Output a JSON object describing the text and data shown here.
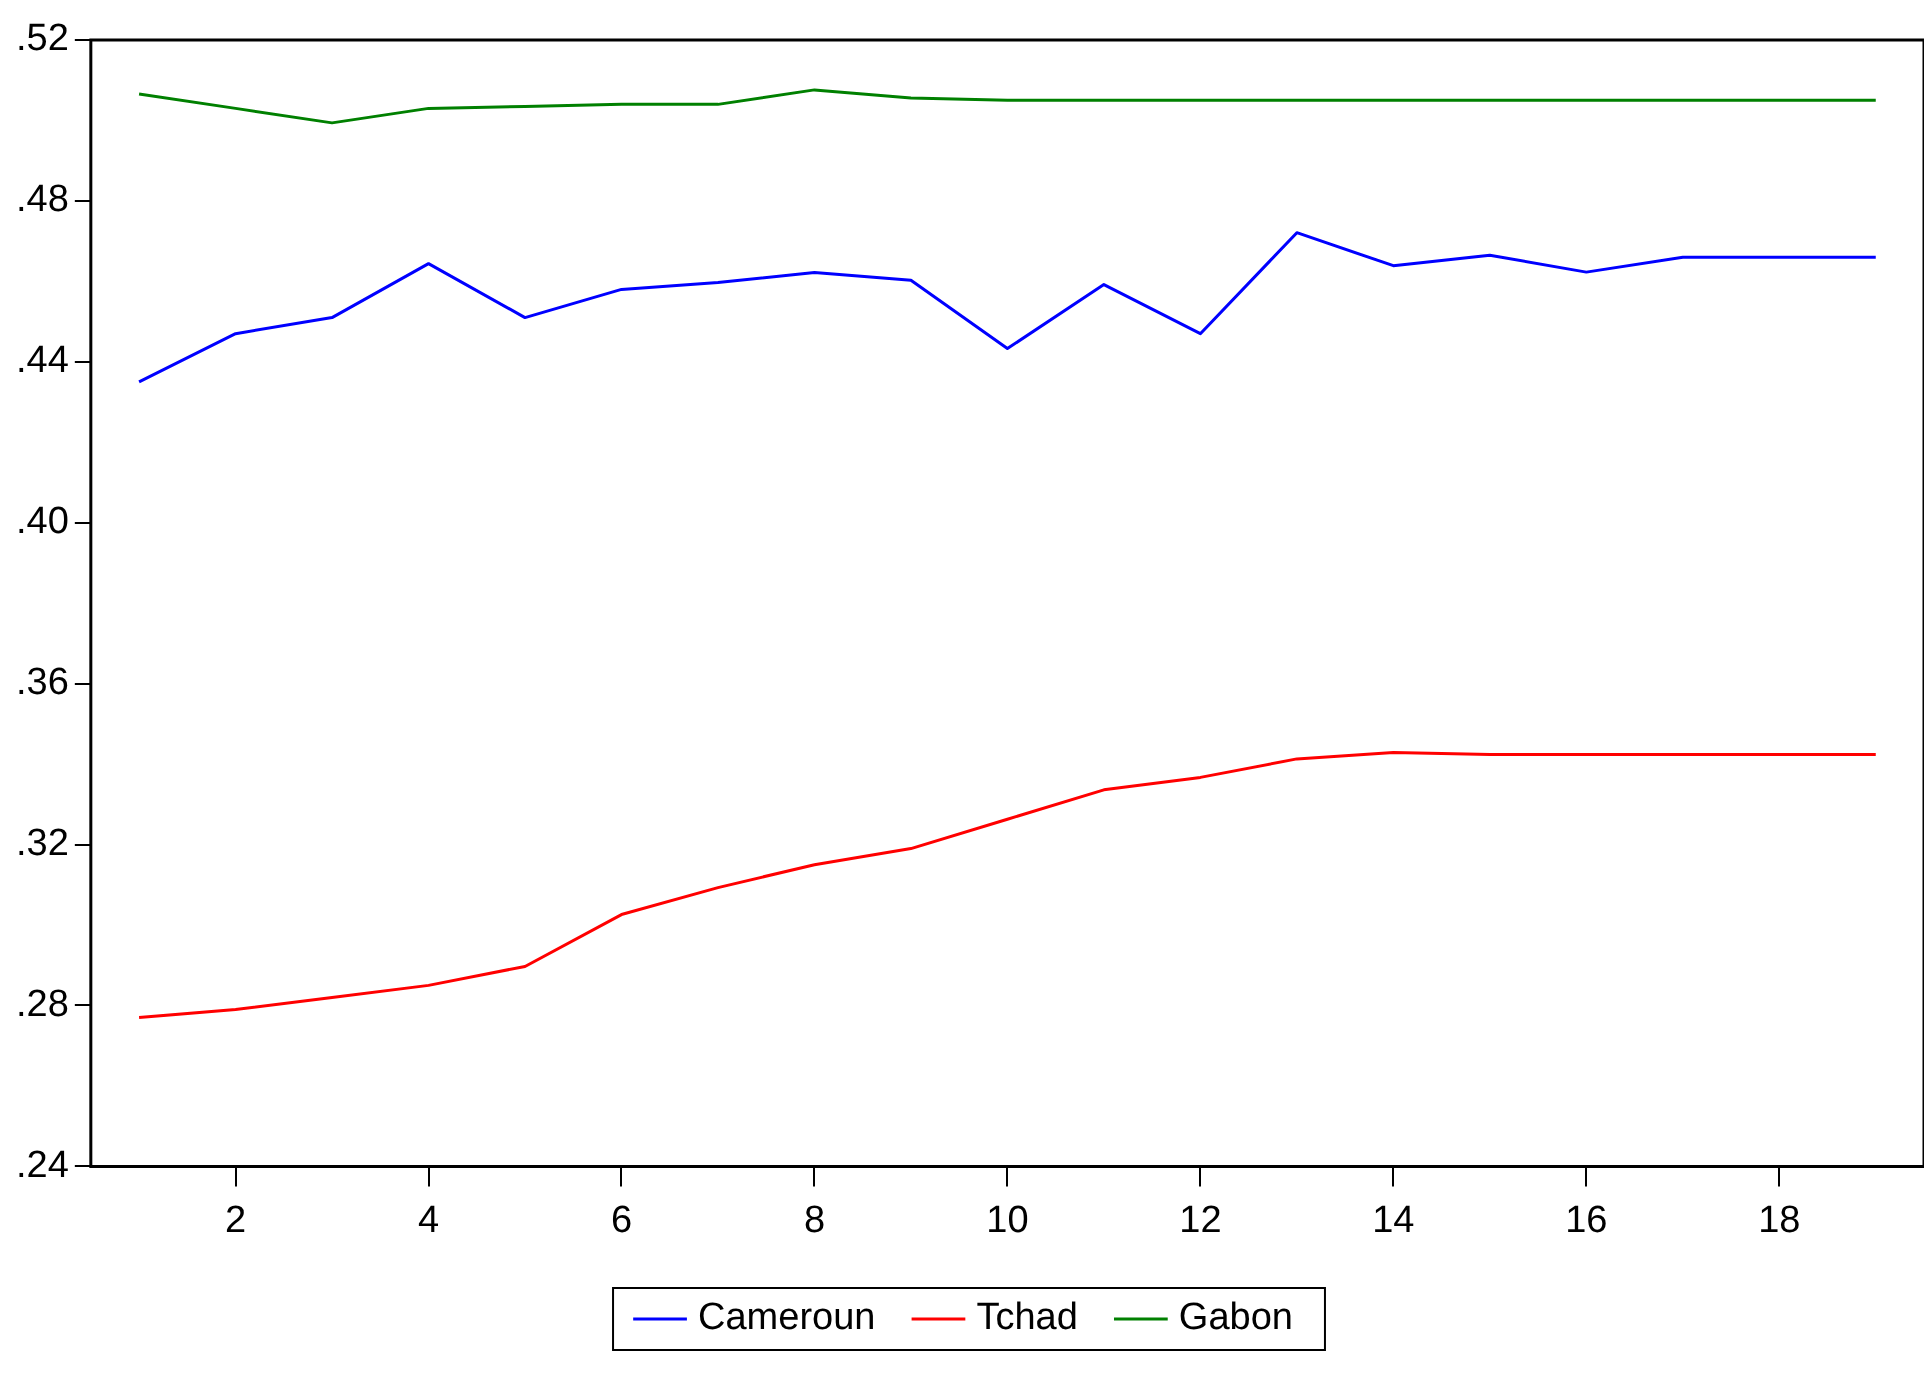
{
  "chart_data": {
    "type": "line",
    "x": [
      1,
      2,
      3,
      4,
      5,
      6,
      7,
      8,
      9,
      10,
      11,
      12,
      13,
      14,
      15,
      16,
      17,
      18,
      19
    ],
    "xlim": [
      0.5,
      19.5
    ],
    "xticks": [
      2,
      4,
      6,
      8,
      10,
      12,
      14,
      16,
      18
    ],
    "ylim": [
      0.24,
      0.52
    ],
    "yticks": [
      {
        "value": 0.24,
        "label": ".24"
      },
      {
        "value": 0.28,
        "label": ".28"
      },
      {
        "value": 0.32,
        "label": ".32"
      },
      {
        "value": 0.36,
        "label": ".36"
      },
      {
        "value": 0.4,
        "label": ".40"
      },
      {
        "value": 0.44,
        "label": ".44"
      },
      {
        "value": 0.48,
        "label": ".48"
      },
      {
        "value": 0.52,
        "label": ".52"
      }
    ],
    "series": [
      {
        "name": "Cameroun",
        "color": "#0000ff",
        "values": [
          0.435,
          0.447,
          0.451,
          0.4644,
          0.451,
          0.458,
          0.4597,
          0.4622,
          0.4603,
          0.4433,
          0.4592,
          0.447,
          0.4721,
          0.4639,
          0.4665,
          0.4623,
          0.466,
          0.466,
          0.466
        ]
      },
      {
        "name": "Tchad",
        "color": "#ff0000",
        "values": [
          0.277,
          0.279,
          0.282,
          0.285,
          0.2897,
          0.3026,
          0.3093,
          0.315,
          0.319,
          0.3263,
          0.3336,
          0.3367,
          0.3413,
          0.3429,
          0.3424,
          0.3424,
          0.3424,
          0.3424,
          0.3424
        ]
      },
      {
        "name": "Gabon",
        "color": "#008000",
        "values": [
          0.5066,
          0.503,
          0.4994,
          0.503,
          0.5035,
          0.504,
          0.504,
          0.5076,
          0.5056,
          0.505,
          0.505,
          0.505,
          0.505,
          0.505,
          0.505,
          0.505,
          0.505,
          0.505,
          0.505
        ]
      }
    ],
    "grid": false,
    "legend": "bottom",
    "marker": "none",
    "line_style": "solid"
  }
}
